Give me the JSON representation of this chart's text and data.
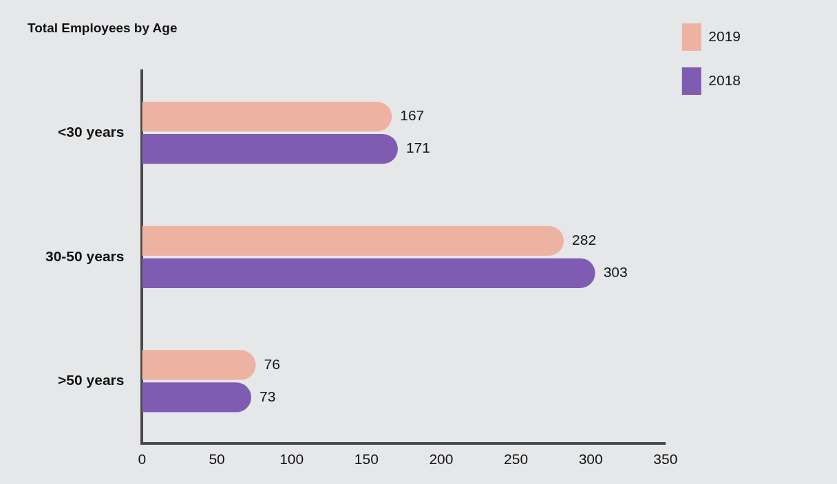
{
  "chart_data": {
    "type": "bar",
    "orientation": "horizontal",
    "title": "Total Employees by Age",
    "categories": [
      "<30 years",
      "30-50 years",
      ">50 years"
    ],
    "series": [
      {
        "name": "2019",
        "color": "#eeb2a3",
        "values": [
          167,
          282,
          76
        ]
      },
      {
        "name": "2018",
        "color": "#7e5cb2",
        "values": [
          171,
          303,
          73
        ]
      }
    ],
    "xlim": [
      0,
      350
    ],
    "xticks": [
      0,
      50,
      100,
      150,
      200,
      250,
      300,
      350
    ],
    "data_labels": true,
    "legend": "top right",
    "grid": false
  }
}
